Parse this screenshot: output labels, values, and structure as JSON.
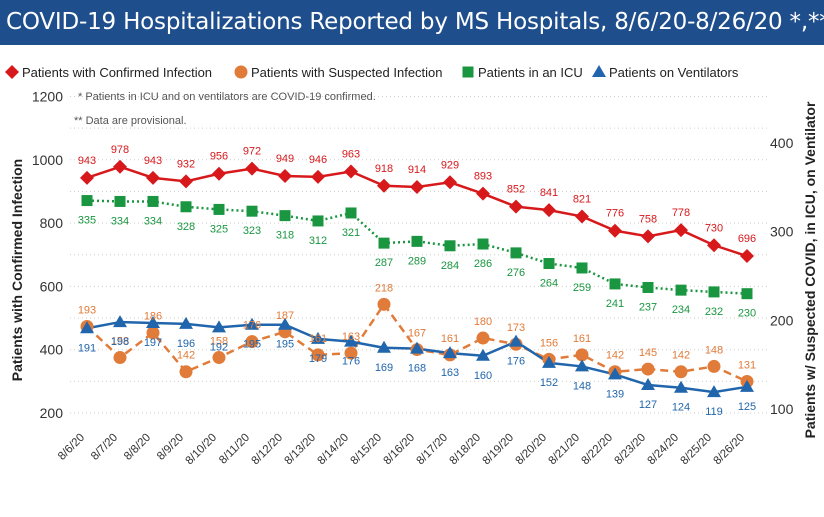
{
  "header": {
    "title": "COVID-19 Hospitalizations Reported by MS Hospitals, 8/6/20-8/26/20 *,**"
  },
  "colors": {
    "title_bg": "#1f4e8c",
    "confirmed": "#d7191c",
    "suspected": "#e07b39",
    "icu": "#1a9641",
    "vent": "#2166ac"
  },
  "chart_data": {
    "type": "line",
    "title": "COVID-19 Hospitalizations Reported by MS Hospitals, 8/6/20-8/26/20 *,**",
    "notes": [
      "* Patients in ICU and on ventilators are COVID-19 confirmed.",
      "** Data are provisional."
    ],
    "ylabel_left": "Patients with Confirmed Infection",
    "ylabel_right": "Patients w/ Suspected COVID, in ICU, on Ventilator",
    "ylim_left": [
      200,
      1200
    ],
    "ylim_right": [
      100,
      450
    ],
    "yticks_left": [
      "200",
      "400",
      "600",
      "800",
      "1000",
      "1200"
    ],
    "yticks_right": [
      "100",
      "200",
      "300",
      "400"
    ],
    "grid": true,
    "legend_position": "top",
    "categories": [
      "8/6/20",
      "8/7/20",
      "8/8/20",
      "8/9/20",
      "8/10/20",
      "8/11/20",
      "8/12/20",
      "8/13/20",
      "8/14/20",
      "8/15/20",
      "8/16/20",
      "8/17/20",
      "8/18/20",
      "8/19/20",
      "8/20/20",
      "8/21/20",
      "8/22/20",
      "8/23/20",
      "8/24/20",
      "8/25/20",
      "8/26/20"
    ],
    "series": [
      {
        "name": "Patients with Confirmed Infection",
        "axis": "left",
        "marker": "diamond",
        "line": "solid",
        "values": [
          943,
          978,
          943,
          932,
          956,
          972,
          949,
          946,
          963,
          918,
          914,
          929,
          893,
          852,
          841,
          821,
          776,
          758,
          778,
          730,
          696
        ]
      },
      {
        "name": "Patients with Suspected Infection",
        "axis": "right",
        "marker": "circle",
        "line": "dashed",
        "values": [
          193,
          158,
          186,
          142,
          158,
          176,
          187,
          161,
          163,
          218,
          167,
          161,
          180,
          173,
          156,
          161,
          142,
          145,
          142,
          148,
          131
        ]
      },
      {
        "name": "Patients in an ICU",
        "axis": "right",
        "marker": "square",
        "line": "dotted",
        "values": [
          335,
          334,
          334,
          328,
          325,
          323,
          318,
          312,
          321,
          287,
          289,
          284,
          286,
          276,
          264,
          259,
          241,
          237,
          234,
          232,
          230
        ]
      },
      {
        "name": "Patients on Ventilators",
        "axis": "right",
        "marker": "triangle",
        "line": "solid",
        "values": [
          191,
          198,
          197,
          196,
          192,
          195,
          195,
          179,
          176,
          169,
          168,
          163,
          160,
          176,
          152,
          148,
          139,
          127,
          124,
          119,
          125
        ]
      }
    ]
  }
}
